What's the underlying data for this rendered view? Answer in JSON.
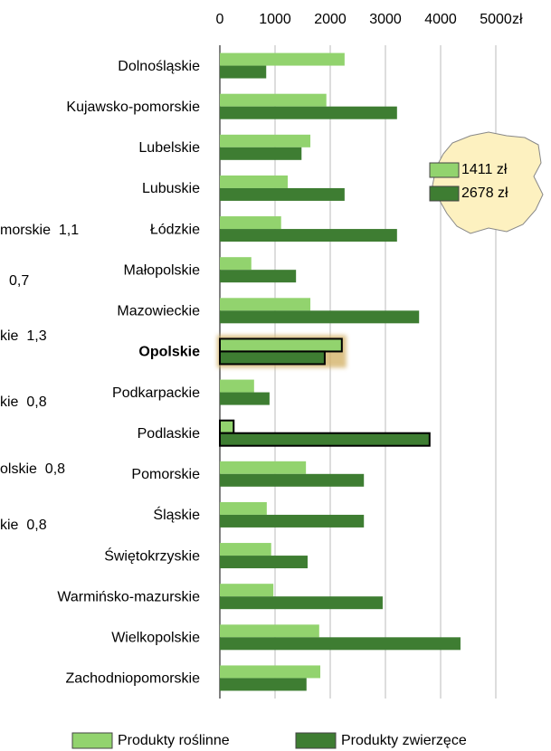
{
  "chart_data": {
    "type": "hbar",
    "categories": [
      "Dolnośląskie",
      "Kujawsko-pomorskie",
      "Lubelskie",
      "Lubuskie",
      "Łódzkie",
      "Małopolskie",
      "Mazowieckie",
      "Opolskie",
      "Podkarpackie",
      "Podlaskie",
      "Pomorskie",
      "Śląskie",
      "Świętokrzyskie",
      "Warmińsko-mazurskie",
      "Wielkopolskie",
      "Zachodniopomorskie"
    ],
    "series": [
      {
        "name": "Produkty roślinne",
        "color": "#92d36e",
        "values": [
          2260,
          1930,
          1640,
          1230,
          1110,
          570,
          1640,
          2210,
          620,
          250,
          1560,
          850,
          930,
          970,
          1800,
          1820
        ]
      },
      {
        "name": "Produkty zwierzęce",
        "color": "#3e7d32",
        "values": [
          840,
          3210,
          1480,
          2260,
          3210,
          1380,
          3610,
          1900,
          900,
          3800,
          2610,
          2610,
          1590,
          2950,
          4360,
          1570
        ]
      }
    ],
    "xlim": [
      0,
      5000
    ],
    "xticks": [
      0,
      1000,
      2000,
      3000,
      4000,
      5000
    ],
    "x_label": "zł",
    "grid": true,
    "highlighted_category": "Opolskie",
    "outlined_category": "Podlaskie",
    "map_legend": [
      "1411 zł",
      "2678 zł"
    ],
    "side_labels": [
      "morskie  1,1",
      "0,7",
      "kie  1,3",
      "kie  0,8",
      "olskie  0,8",
      "kie  0,8"
    ]
  }
}
